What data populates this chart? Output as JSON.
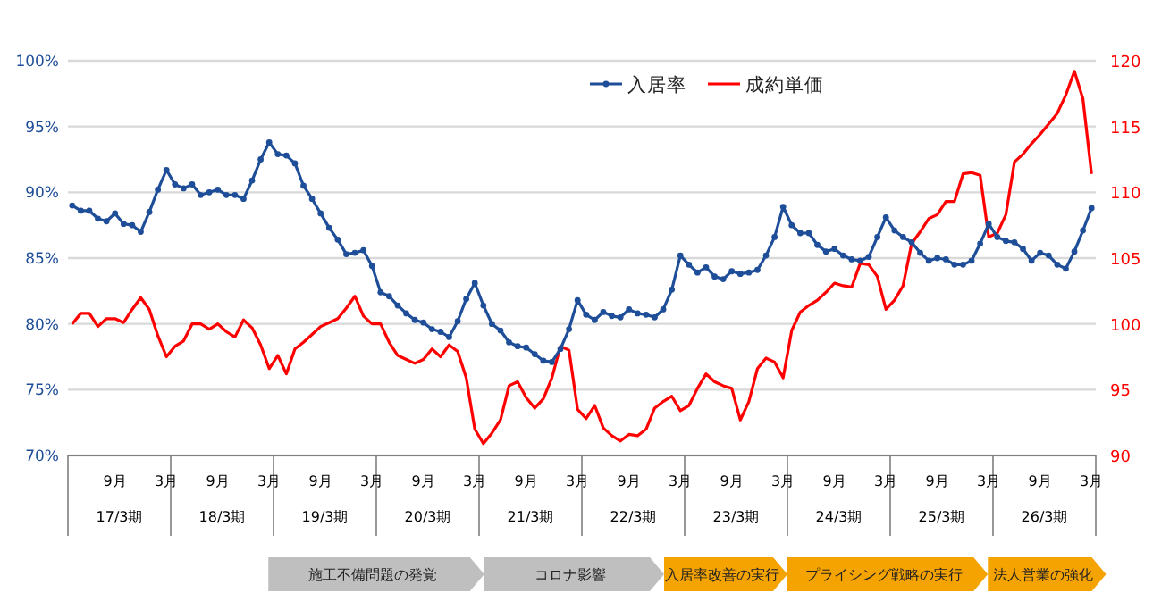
{
  "chart_data": {
    "type": "line",
    "categories": [
      null,
      null,
      null,
      null,
      null,
      "9月",
      null,
      null,
      null,
      null,
      null,
      "3月",
      null,
      null,
      null,
      null,
      null,
      "9月",
      null,
      null,
      null,
      null,
      null,
      "3月",
      null,
      null,
      null,
      null,
      null,
      "9月",
      null,
      null,
      null,
      null,
      null,
      "3月",
      null,
      null,
      null,
      null,
      null,
      "9月",
      null,
      null,
      null,
      null,
      null,
      "3月",
      null,
      null,
      null,
      null,
      null,
      "9月",
      null,
      null,
      null,
      null,
      null,
      "3月",
      null,
      null,
      null,
      null,
      null,
      "9月",
      null,
      null,
      null,
      null,
      null,
      "3月",
      null,
      null,
      null,
      null,
      null,
      "9月",
      null,
      null,
      null,
      null,
      null,
      "3月",
      null,
      null,
      null,
      null,
      null,
      "9月",
      null,
      null,
      null,
      null,
      null,
      "3月",
      null,
      null,
      null,
      null,
      null,
      "9月",
      null,
      null,
      null,
      null,
      null,
      "3月",
      null,
      null,
      null,
      null,
      null,
      "9月",
      null,
      null,
      null,
      null,
      null,
      "3月"
    ],
    "series": [
      {
        "name": "入居率",
        "color": "#1f4e99",
        "marker": "circle",
        "axis": "y",
        "values": [
          89.0,
          88.6,
          88.6,
          88.0,
          87.8,
          88.4,
          87.6,
          87.5,
          87.0,
          88.5,
          90.2,
          91.7,
          90.6,
          90.3,
          90.6,
          89.8,
          90.0,
          90.2,
          89.8,
          89.8,
          89.5,
          90.9,
          92.5,
          93.8,
          92.9,
          92.8,
          92.2,
          90.5,
          89.5,
          88.4,
          87.3,
          86.4,
          85.3,
          85.4,
          85.6,
          84.4,
          82.4,
          82.1,
          81.4,
          80.8,
          80.3,
          80.1,
          79.6,
          79.4,
          79.0,
          80.2,
          81.9,
          83.1,
          81.4,
          80.0,
          79.5,
          78.6,
          78.3,
          78.2,
          77.7,
          77.2,
          77.1,
          78.1,
          79.6,
          81.8,
          80.7,
          80.3,
          80.9,
          80.6,
          80.5,
          81.1,
          80.8,
          80.7,
          80.5,
          81.1,
          82.6,
          85.2,
          84.5,
          83.9,
          84.3,
          83.6,
          83.4,
          84.0,
          83.8,
          83.9,
          84.1,
          85.2,
          86.6,
          88.9,
          87.5,
          86.9,
          86.9,
          86.0,
          85.5,
          85.7,
          85.2,
          84.9,
          84.8,
          85.1,
          86.6,
          88.1,
          87.1,
          86.6,
          86.2,
          85.4,
          84.8,
          85.0,
          84.9,
          84.5,
          84.5,
          84.8,
          86.1,
          87.6,
          86.6,
          86.3,
          86.2,
          85.7,
          84.8,
          85.4,
          85.2,
          84.5,
          84.2,
          85.5,
          87.1,
          88.8
        ]
      },
      {
        "name": "成約単価",
        "color": "#ff0000",
        "axis": "y2",
        "values": [
          100.0,
          100.8,
          100.8,
          99.8,
          100.4,
          100.4,
          100.1,
          101.1,
          102.0,
          101.1,
          99.1,
          97.5,
          98.3,
          98.7,
          100.0,
          100.0,
          99.6,
          100.0,
          99.4,
          99.0,
          100.3,
          99.7,
          98.4,
          96.6,
          97.6,
          96.2,
          98.1,
          98.6,
          99.2,
          99.8,
          100.1,
          100.4,
          101.2,
          102.1,
          100.6,
          100.0,
          100.0,
          98.6,
          97.6,
          97.3,
          97.0,
          97.3,
          98.1,
          97.5,
          98.4,
          97.9,
          95.9,
          92.0,
          90.9,
          91.7,
          92.7,
          95.3,
          95.6,
          94.4,
          93.6,
          94.3,
          95.9,
          98.3,
          98.0,
          93.5,
          92.8,
          93.8,
          92.1,
          91.5,
          91.1,
          91.6,
          91.5,
          92.0,
          93.6,
          94.1,
          94.5,
          93.4,
          93.8,
          95.1,
          96.2,
          95.6,
          95.3,
          95.1,
          92.7,
          94.1,
          96.6,
          97.4,
          97.1,
          95.9,
          99.5,
          100.9,
          101.4,
          101.8,
          102.4,
          103.1,
          102.9,
          102.8,
          104.6,
          104.5,
          103.6,
          101.1,
          101.8,
          102.9,
          106.1,
          107.0,
          108.0,
          108.3,
          109.3,
          109.3,
          111.4,
          111.5,
          111.3,
          106.6,
          106.9,
          108.3,
          112.3,
          112.9,
          113.7,
          114.4,
          115.2,
          116.0,
          117.4,
          119.2,
          117.1,
          111.4
        ]
      }
    ],
    "ylim": [
      70,
      100
    ],
    "yticks": [
      {
        "value": 70,
        "label": "70%"
      },
      {
        "value": 75,
        "label": "75%"
      },
      {
        "value": 80,
        "label": "80%"
      },
      {
        "value": 85,
        "label": "85%"
      },
      {
        "value": 90,
        "label": "90%"
      },
      {
        "value": 95,
        "label": "95%"
      },
      {
        "value": 100,
        "label": "100%"
      }
    ],
    "y2lim": [
      90,
      120
    ],
    "y2ticks": [
      90,
      95,
      100,
      105,
      110,
      115,
      120
    ],
    "grid": "y",
    "legend": "top",
    "annotations": [
      "17/3期",
      "18/3期",
      "19/3期",
      "20/3期",
      "21/3期",
      "22/3期",
      "23/3期",
      "24/3期",
      "25/3期",
      "26/3期",
      "施工不備問題の発覚",
      "コロナ影響",
      "入居率改善の実行",
      "プライシング戦略の実行",
      "法人営業の強化"
    ]
  }
}
